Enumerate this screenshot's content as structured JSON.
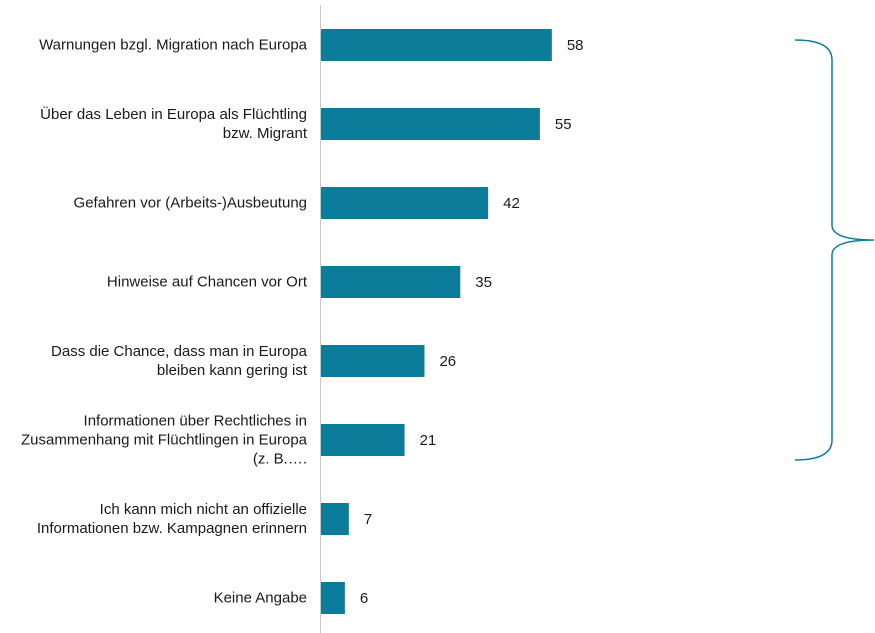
{
  "chart_data": {
    "type": "bar",
    "orientation": "horizontal",
    "categories": [
      "Warnungen bzgl. Migration nach Europa",
      "Über das Leben in Europa als Flüchtling bzw. Migrant",
      "Gefahren vor (Arbeits-)Ausbeutung",
      "Hinweise auf Chancen vor Ort",
      "Dass die Chance, dass man in Europa bleiben kann gering ist",
      "Informationen über Rechtliches in Zusammenhang mit Flüchtlingen in Europa (z. B.….",
      "Ich kann mich nicht an offizielle Informationen bzw. Kampagnen erinnern",
      "Keine Angabe"
    ],
    "values": [
      58,
      55,
      42,
      35,
      26,
      21,
      7,
      6
    ],
    "color": "#0b7d9b"
  }
}
